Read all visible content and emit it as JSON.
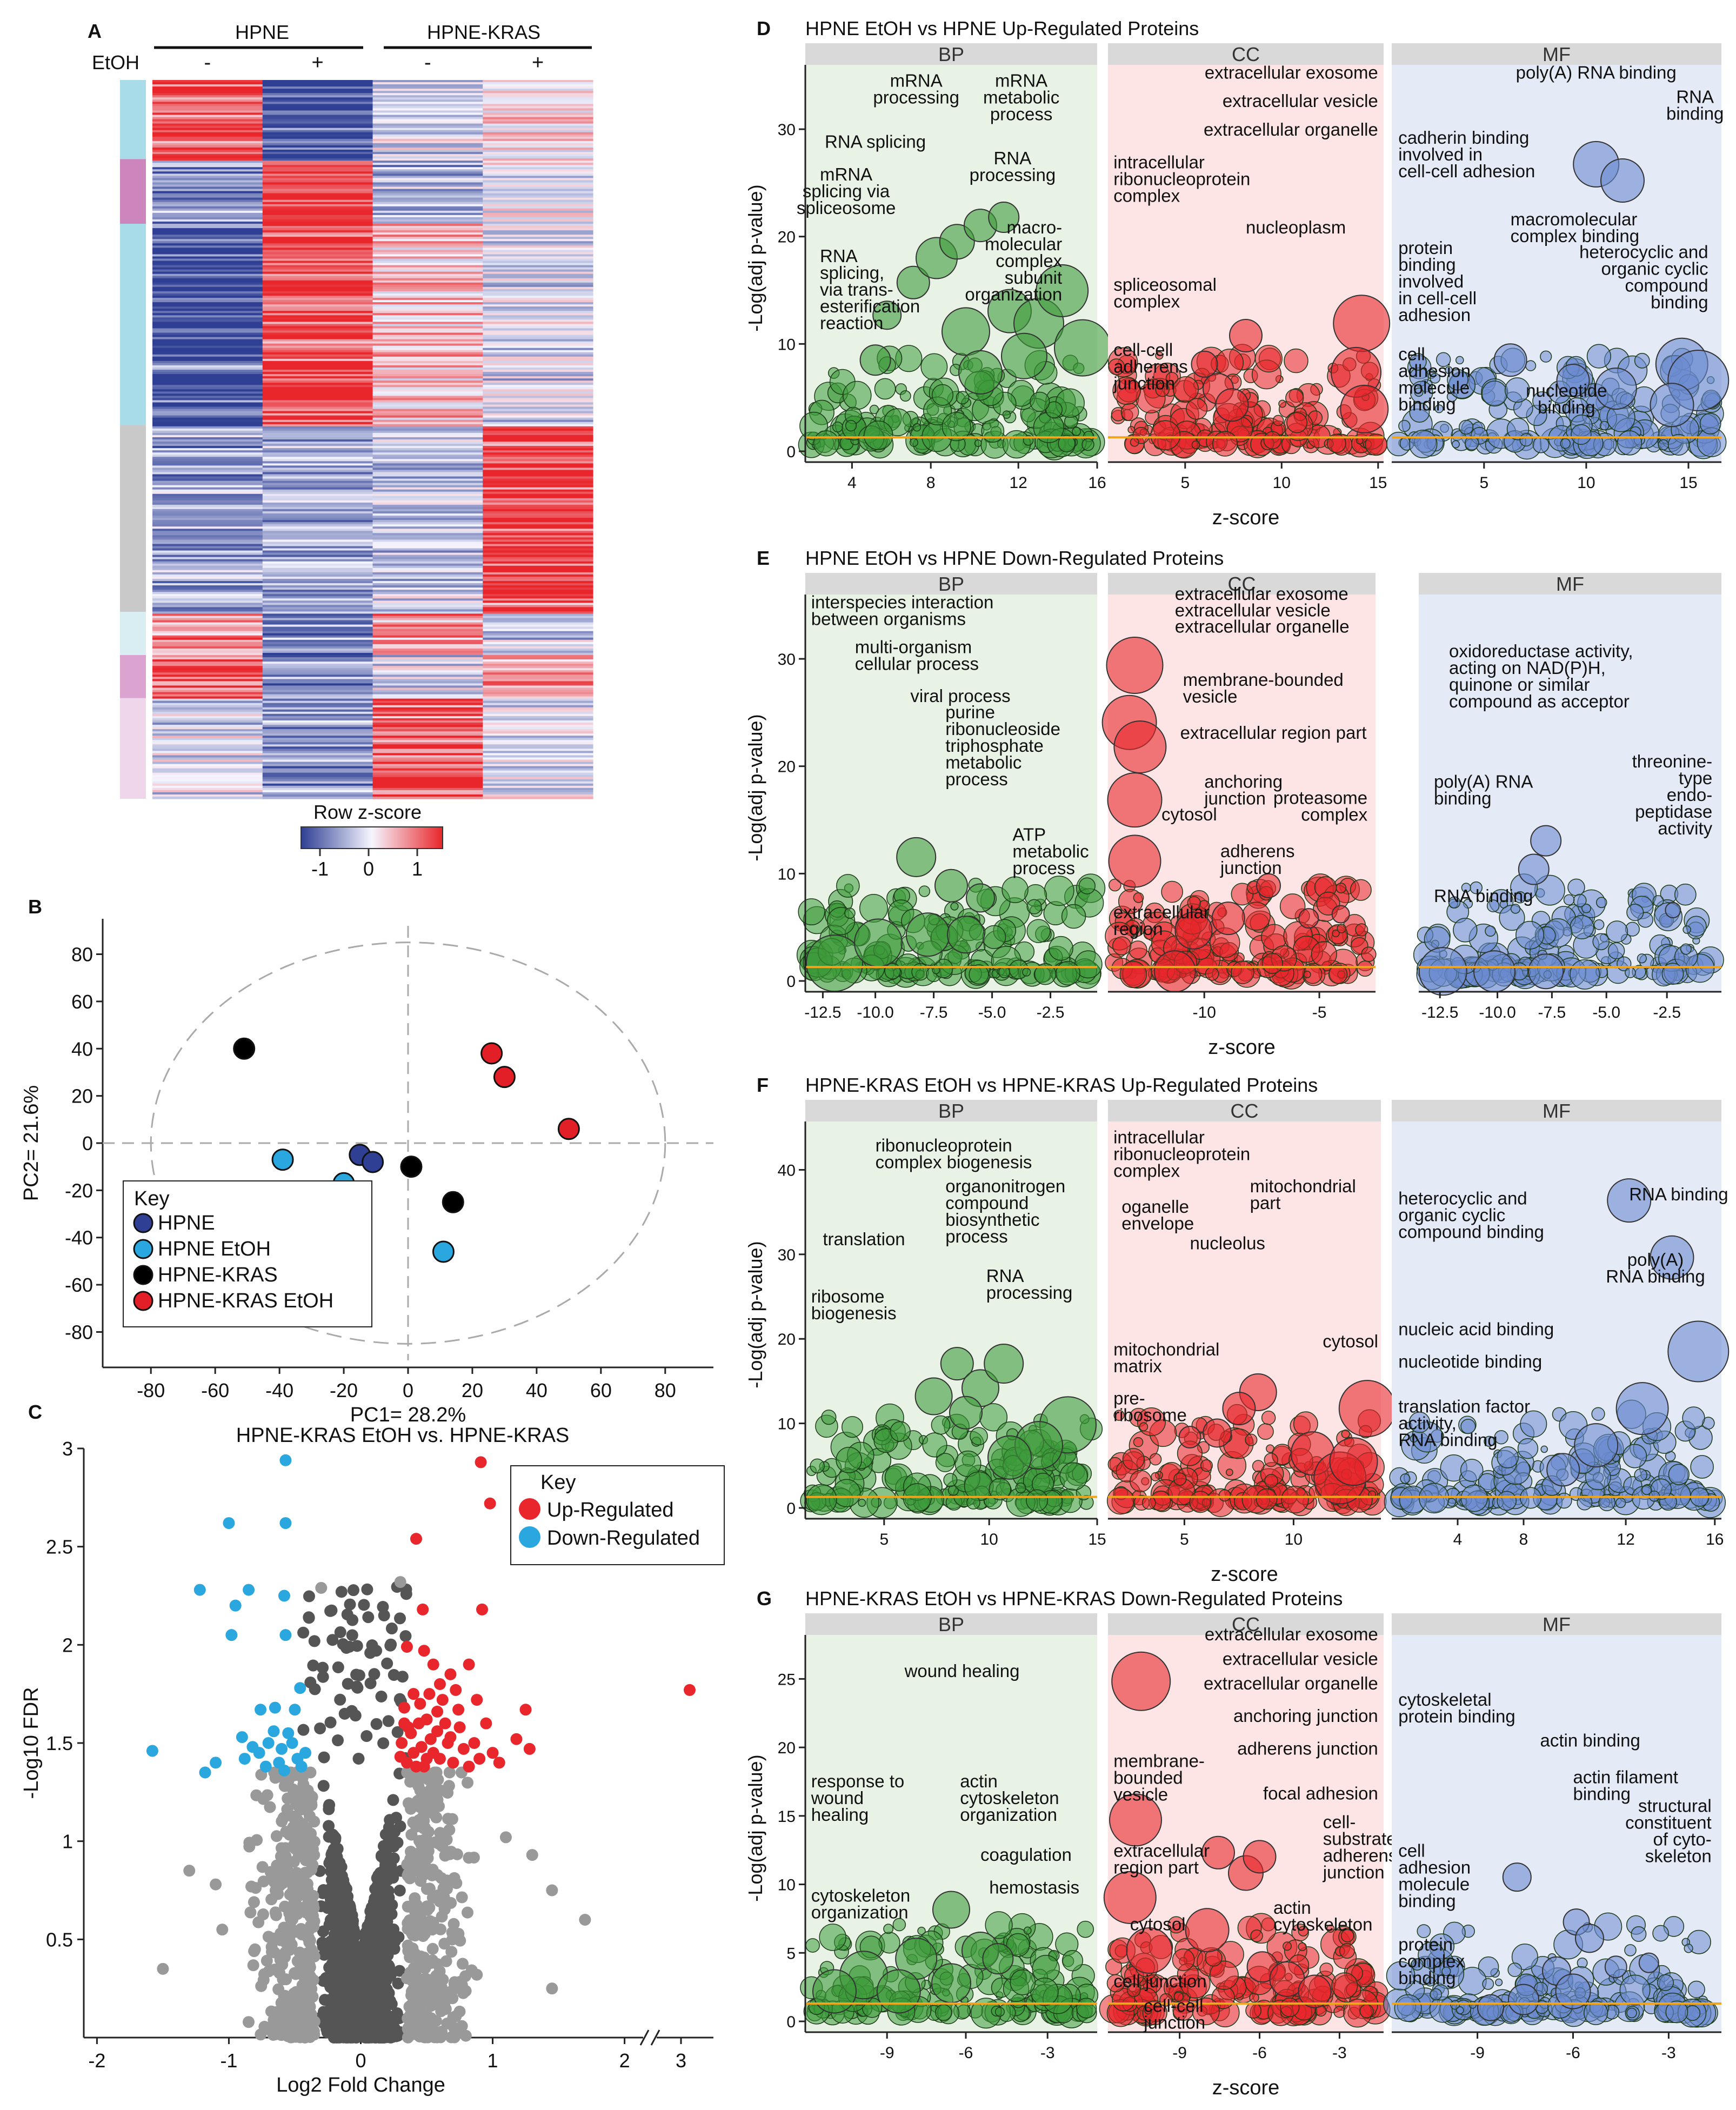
{
  "colors": {
    "red": "#e8262b",
    "blue": "#2e3f94",
    "pale": "#eef2fb",
    "bp_bg": "#e9f3e5",
    "cc_bg": "#fde5e5",
    "mf_bg": "#e5eaf7",
    "strip": "#d9d9d9",
    "threshold": "#f0a51c",
    "bp": "#3d9b3a",
    "cc": "#e8262b",
    "mf": "#6b8bd0",
    "grey_dark": "#555555",
    "grey_light": "#999999",
    "hpne": "#2e3f94",
    "hpne_etoh": "#2aa7df",
    "kras": "#000000",
    "kras_etoh": "#e21f26"
  },
  "chart_data": [
    {
      "panel": "A",
      "type": "heatmap",
      "group_labels": [
        "HPNE",
        "HPNE-KRAS"
      ],
      "etoh_label": "EtOH",
      "columns": [
        "-",
        "+",
        "-",
        "+"
      ],
      "cluster_colors": [
        "#a8dce8",
        "#cc86bd",
        "#a8dce8",
        "#c9c9c9",
        "#d9eef3",
        "#dba3cf",
        "#efd6ea"
      ],
      "cluster_fractions": [
        0.11,
        0.09,
        0.28,
        0.26,
        0.06,
        0.06,
        0.14
      ],
      "cluster_pattern": [
        [
          1,
          -1,
          -0.2,
          0.2
        ],
        [
          -0.6,
          1,
          -0.4,
          -0.1
        ],
        [
          -1,
          0.9,
          0.3,
          -0.2
        ],
        [
          -0.5,
          -0.5,
          -0.3,
          1
        ],
        [
          0.6,
          -0.8,
          0.5,
          -0.3
        ],
        [
          0.9,
          -0.6,
          -0.2,
          0.5
        ],
        [
          -0.2,
          -0.6,
          0.9,
          -0.1
        ]
      ],
      "legend_title": "Row z-score",
      "legend_ticks": [
        "-1",
        "0",
        "1"
      ]
    },
    {
      "panel": "B",
      "type": "scatter",
      "xlabel": "PC1= 28.2%",
      "ylabel": "PC2= 21.6%",
      "xlim": [
        -95,
        95
      ],
      "ylim": [
        -95,
        95
      ],
      "xticks": [
        "-80",
        "-60",
        "-40",
        "-20",
        "0",
        "20",
        "40",
        "60",
        "80"
      ],
      "yticks": [
        "80",
        "60",
        "40",
        "20",
        "0",
        "-20",
        "-40",
        "-60",
        "-80"
      ],
      "legend_title": "Key",
      "series": [
        {
          "name": "HPNE",
          "color": "#2e3f94",
          "points": [
            [
              -15,
              -5
            ],
            [
              -11,
              -8
            ]
          ]
        },
        {
          "name": "HPNE EtOH",
          "color": "#2aa7df",
          "points": [
            [
              -39,
              -7
            ],
            [
              -20,
              -17
            ],
            [
              11,
              -46
            ]
          ]
        },
        {
          "name": "HPNE-KRAS",
          "color": "#000000",
          "points": [
            [
              -51,
              40
            ],
            [
              1,
              -10
            ],
            [
              14,
              -25
            ]
          ]
        },
        {
          "name": "HPNE-KRAS EtOH",
          "color": "#e21f26",
          "points": [
            [
              26,
              38
            ],
            [
              30,
              28
            ],
            [
              50,
              6
            ]
          ]
        }
      ]
    },
    {
      "panel": "C",
      "type": "scatter",
      "title": "HPNE-KRAS EtOH vs. HPNE-KRAS",
      "xlabel": "Log2 Fold Change",
      "ylabel": "-Log10 FDR",
      "xlim": [
        -2.1,
        2.35
      ],
      "ylim": [
        0,
        3
      ],
      "xticks": [
        "-2",
        "-1",
        "0",
        "1",
        "2",
        "3"
      ],
      "yticks": [
        "3",
        "2.5",
        "2",
        "1.5",
        "1",
        "0.5"
      ],
      "legend_title": "Key",
      "legend": [
        "Up-Regulated",
        "Down-Regulated"
      ],
      "up_points": [
        [
          0.91,
          2.93
        ],
        [
          0.98,
          2.72
        ],
        [
          0.42,
          2.54
        ],
        [
          0.47,
          2.18
        ],
        [
          0.92,
          2.18
        ],
        [
          0.35,
          1.99
        ],
        [
          0.48,
          1.97
        ],
        [
          0.55,
          1.9
        ],
        [
          0.68,
          1.85
        ],
        [
          0.82,
          1.9
        ],
        [
          0.6,
          1.8
        ],
        [
          0.72,
          1.77
        ],
        [
          0.88,
          1.72
        ],
        [
          0.33,
          1.68
        ],
        [
          0.45,
          1.7
        ],
        [
          0.5,
          1.62
        ],
        [
          0.58,
          1.66
        ],
        [
          0.64,
          1.6
        ],
        [
          0.75,
          1.58
        ],
        [
          0.95,
          1.6
        ],
        [
          0.38,
          1.55
        ],
        [
          0.53,
          1.52
        ],
        [
          0.66,
          1.5
        ],
        [
          0.78,
          1.47
        ],
        [
          0.86,
          1.5
        ],
        [
          0.4,
          1.45
        ],
        [
          0.6,
          1.42
        ],
        [
          0.7,
          1.4
        ],
        [
          0.9,
          1.42
        ],
        [
          1.0,
          1.45
        ],
        [
          0.35,
          1.4
        ],
        [
          0.48,
          1.38
        ],
        [
          0.55,
          1.45
        ],
        [
          1.25,
          1.67
        ],
        [
          1.28,
          1.47
        ],
        [
          1.18,
          1.52
        ],
        [
          1.05,
          1.4
        ],
        [
          0.82,
          1.38
        ],
        [
          0.44,
          1.6
        ],
        [
          0.3,
          1.43
        ],
        [
          0.31,
          1.5
        ],
        [
          0.33,
          1.6
        ],
        [
          0.36,
          1.58
        ],
        [
          0.4,
          1.75
        ],
        [
          0.52,
          1.75
        ],
        [
          0.62,
          1.72
        ],
        [
          0.74,
          1.67
        ],
        [
          0.68,
          1.53
        ],
        [
          0.58,
          1.56
        ],
        [
          0.46,
          1.48
        ],
        [
          0.5,
          1.42
        ],
        [
          0.42,
          1.38
        ]
      ],
      "up_far": [
        [
          3.2,
          1.77
        ]
      ],
      "down_points": [
        [
          -0.57,
          2.94
        ],
        [
          -1.0,
          2.62
        ],
        [
          -0.57,
          2.62
        ],
        [
          -1.22,
          2.28
        ],
        [
          -0.85,
          2.28
        ],
        [
          -0.95,
          2.2
        ],
        [
          -0.58,
          2.25
        ],
        [
          -0.98,
          2.05
        ],
        [
          -0.57,
          2.05
        ],
        [
          -0.46,
          1.78
        ],
        [
          -0.65,
          1.68
        ],
        [
          -0.76,
          1.67
        ],
        [
          -0.5,
          1.67
        ],
        [
          -1.58,
          1.46
        ],
        [
          -1.18,
          1.35
        ],
        [
          -1.1,
          1.4
        ],
        [
          -0.9,
          1.53
        ],
        [
          -0.82,
          1.48
        ],
        [
          -0.7,
          1.5
        ],
        [
          -0.6,
          1.47
        ],
        [
          -0.52,
          1.5
        ],
        [
          -0.48,
          1.42
        ],
        [
          -0.72,
          1.38
        ],
        [
          -0.62,
          1.4
        ],
        [
          -0.42,
          1.45
        ],
        [
          -0.55,
          1.55
        ],
        [
          -0.66,
          1.56
        ],
        [
          -0.77,
          1.45
        ],
        [
          -0.88,
          1.42
        ],
        [
          -0.45,
          1.38
        ],
        [
          -0.58,
          1.36
        ]
      ]
    },
    {
      "panel": "D",
      "type": "scatter",
      "title": "HPNE EtOH vs HPNE Up-Regulated Proteins",
      "ylabel": "-Log(adj p-value)",
      "xlabel": "z-score",
      "yticks": [
        "0",
        "10",
        "20",
        "30"
      ],
      "facets": [
        {
          "name": "BP",
          "xticks": [
            "4",
            "8",
            "12",
            "16"
          ],
          "labels": [
            "mRNA processing",
            "mRNA metabolic process",
            "RNA splicing",
            "mRNA splicing via spliceosome",
            "RNA processing",
            "macro-molecular complex subunit organization",
            "RNA splicing, via trans-esterification reaction"
          ]
        },
        {
          "name": "CC",
          "xticks": [
            "5",
            "10",
            "15"
          ],
          "labels": [
            "extracellular exosome",
            "extracellular vesicle",
            "extracellular organelle",
            "intracellular ribonucleoprotein complex",
            "nucleoplasm",
            "spliceosomal complex",
            "cell-cell adherens junction"
          ]
        },
        {
          "name": "MF",
          "xticks": [
            "5",
            "10",
            "15"
          ],
          "labels": [
            "poly(A) RNA binding",
            "RNA binding",
            "cadherin binding involved in cell-cell adhesion",
            "macromolecular complex binding",
            "protein binding involved in cell-cell adhesion",
            "heterocyclic and organic cyclic compound binding",
            "cell adhesion molecule binding",
            "nucleotide binding"
          ]
        }
      ]
    },
    {
      "panel": "E",
      "type": "scatter",
      "title": "HPNE EtOH vs HPNE Down-Regulated Proteins",
      "ylabel": "-Log(adj p-value)",
      "xlabel": "z-score",
      "yticks": [
        "0",
        "10",
        "20",
        "30"
      ],
      "facets": [
        {
          "name": "BP",
          "xticks": [
            "-12.5",
            "-10.0",
            "-7.5",
            "-5.0",
            "-2.5"
          ],
          "labels": [
            "interspecies interaction between organisms",
            "multi-organism cellular process",
            "viral process",
            "purine ribonucleoside triphosphate metabolic process",
            "ATP metabolic process"
          ]
        },
        {
          "name": "CC",
          "xticks": [
            "-10",
            "-5"
          ],
          "labels": [
            "extracellular exosome",
            "extracellular vesicle",
            "extracellular organelle",
            "membrane-bounded vesicle",
            "extracellular region part",
            "anchoring junction",
            "cytosol",
            "proteasome complex",
            "adherens junction",
            "extracellular region"
          ]
        },
        {
          "name": "MF",
          "xticks": [
            "-12.5",
            "-10.0",
            "-7.5",
            "-5.0",
            "-2.5"
          ],
          "labels": [
            "oxidoreductase activity, acting on NAD(P)H, quinone or similar compound as acceptor",
            "poly(A) RNA binding",
            "threonine-type endo-peptidase activity",
            "RNA binding"
          ]
        }
      ]
    },
    {
      "panel": "F",
      "type": "scatter",
      "title": "HPNE-KRAS EtOH vs HPNE-KRAS Up-Regulated Proteins",
      "ylabel": "-Log(adj p-value)",
      "xlabel": "z-score",
      "yticks": [
        "0",
        "10",
        "20",
        "30",
        "40"
      ],
      "facets": [
        {
          "name": "BP",
          "xticks": [
            "5",
            "10",
            "15"
          ],
          "labels": [
            "ribonucleoprotein complex biogenesis",
            "organonitrogen compound biosynthetic process",
            "translation",
            "ribosome biogenesis",
            "RNA processing"
          ]
        },
        {
          "name": "CC",
          "xticks": [
            "5",
            "10"
          ],
          "labels": [
            "intracellular ribonucleoprotein complex",
            "mitochondrial part",
            "oganelle envelope",
            "nucleolus",
            "cytosol",
            "mitochondrial matrix",
            "pre-ribosome"
          ]
        },
        {
          "name": "MF",
          "xticks": [
            "4",
            "8",
            "12",
            "16"
          ],
          "labels": [
            "RNA binding",
            "heterocyclic and organic cyclic compound binding",
            "poly(A) RNA binding",
            "nucleic acid binding",
            "nucleotide binding",
            "translation factor activity, RNA binding"
          ]
        }
      ]
    },
    {
      "panel": "G",
      "type": "scatter",
      "title": "HPNE-KRAS EtOH vs HPNE-KRAS Down-Regulated Proteins",
      "ylabel": "-Log(adj p-value)",
      "xlabel": "z-score",
      "yticks": [
        "0",
        "5",
        "10",
        "15",
        "20",
        "25"
      ],
      "facets": [
        {
          "name": "BP",
          "xticks": [
            "-9",
            "-6",
            "-3"
          ],
          "labels": [
            "wound healing",
            "response to wound healing",
            "actin cytoskeleton organization",
            "coagulation",
            "hemostasis",
            "cytoskeleton organization"
          ]
        },
        {
          "name": "CC",
          "xticks": [
            "-9",
            "-6",
            "-3"
          ],
          "labels": [
            "extracellular exosome",
            "extracellular vesicle",
            "extracellular organelle",
            "anchoring junction",
            "adherens junction",
            "membrane-bounded vesicle",
            "focal adhesion",
            "cell-substrate adherens junction",
            "extracellular region part",
            "cytosol",
            "actin cytoskeleton",
            "cell junction",
            "cell-cell junction"
          ]
        },
        {
          "name": "MF",
          "xticks": [
            "-9",
            "-6",
            "-3"
          ],
          "labels": [
            "cytoskeletal protein binding",
            "actin binding",
            "actin filament binding",
            "structural constituent of cyto-skeleton",
            "cell adhesion molecule binding",
            "protein complex binding"
          ]
        }
      ]
    }
  ]
}
